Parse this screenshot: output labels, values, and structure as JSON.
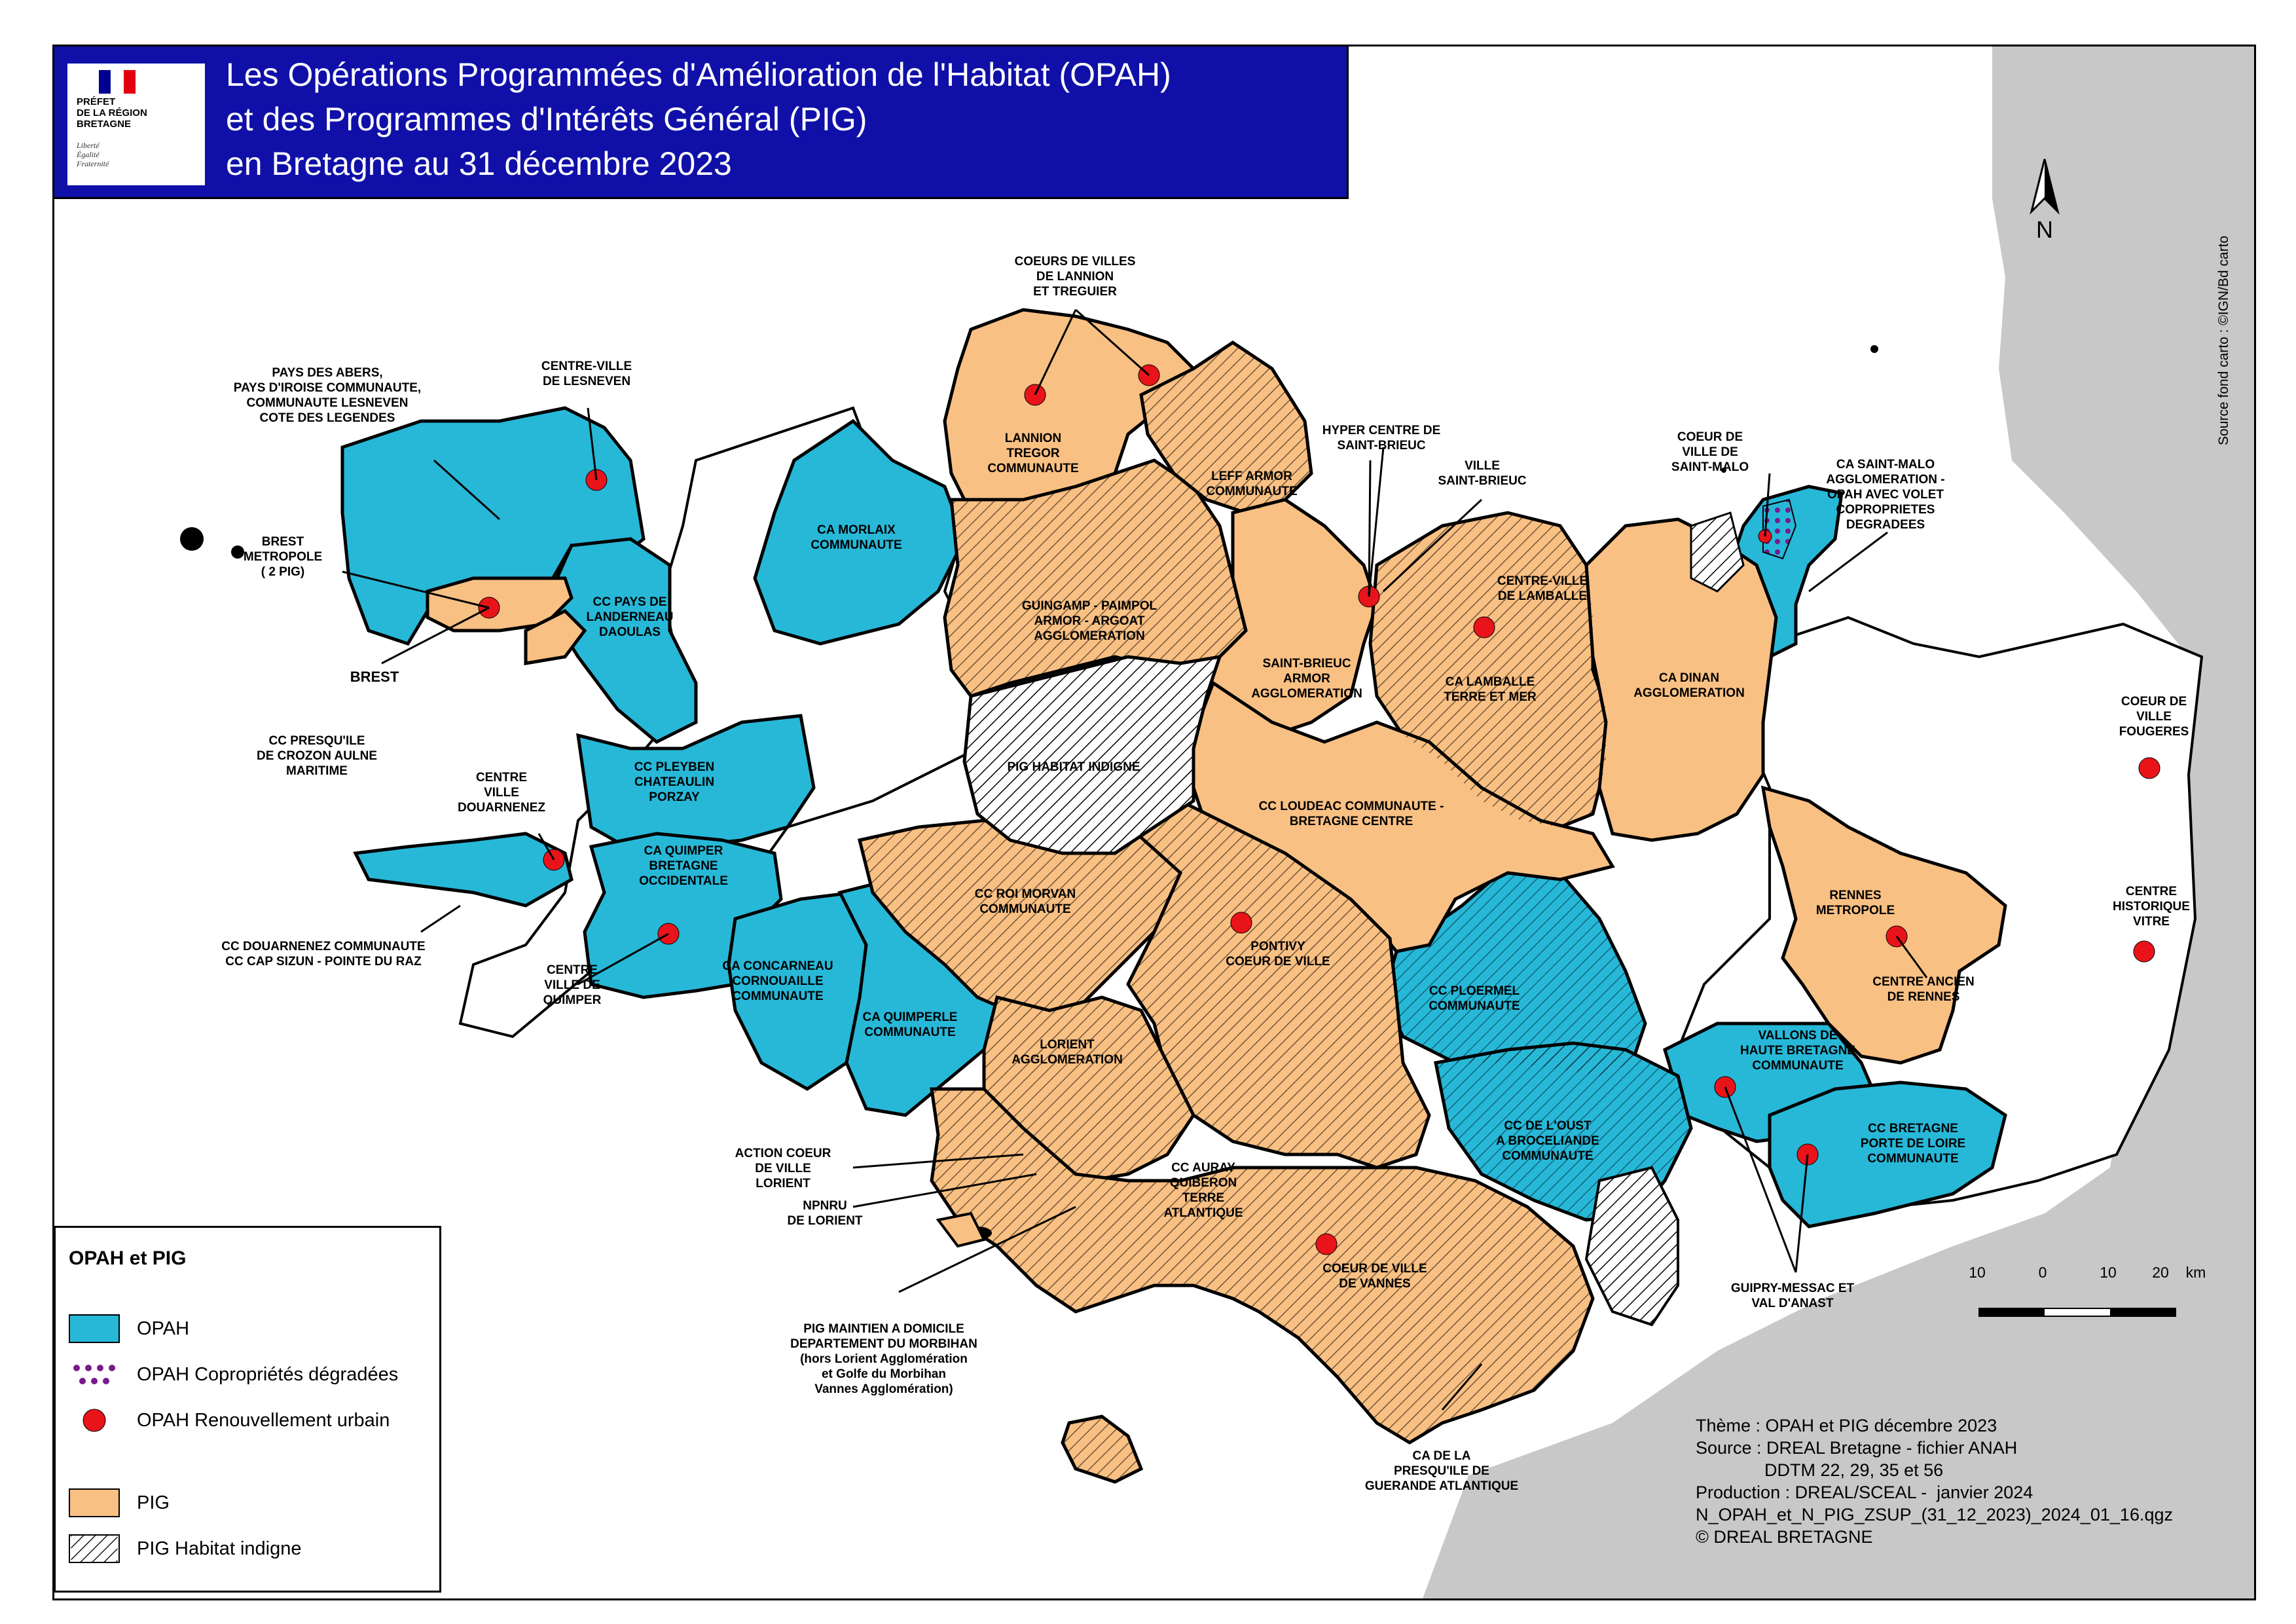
{
  "header": {
    "title_lines": [
      "Les Opérations Programmées d'Amélioration de l'Habitat (OPAH)",
      "et des Programmes d'Intérêts Général (PIG)",
      "en Bretagne au 31 décembre 2023"
    ],
    "logo_text": "PRÉFET\nDE LA RÉGION\nBRETAGNE",
    "logo_motto": "Liberté\nÉgalité\nFraternité"
  },
  "legend": {
    "title": "OPAH et PIG",
    "items": [
      {
        "label": "OPAH",
        "icon": "swatch-blue"
      },
      {
        "label": "OPAH Copropriétés dégradées",
        "icon": "swatch-purple-dots"
      },
      {
        "label": "OPAH Renouvellement urbain",
        "icon": "red-dot"
      },
      {
        "label": "PIG",
        "icon": "swatch-orange"
      },
      {
        "label": "PIG Habitat indigne",
        "icon": "swatch-hatch"
      }
    ]
  },
  "labels": [
    "COEURS DE VILLES\nDE LANNION\nET TREGUIER",
    "PAYS DES ABERS,\nPAYS D'IROISE COMMUNAUTE,\nCOMMUNAUTE LESNEVEN\nCOTE DES LEGENDES",
    "CENTRE-VILLE\nDE LESNEVEN",
    "LANNION\nTREGOR\nCOMMUNAUTE",
    "LEFF ARMOR\nCOMMUNAUTE",
    "HYPER CENTRE DE\nSAINT-BRIEUC",
    "VILLE\nSAINT-BRIEUC",
    "COEUR DE\nVILLE DE\nSAINT-MALO",
    "CA SAINT-MALO\nAGGLOMERATION -\nOPAH AVEC VOLET\nCOPROPRIETES\nDEGRADEES",
    "CA MORLAIX\nCOMMUNAUTE",
    "BREST\nMETROPOLE\n( 2 PIG)",
    "CC PAYS DE\nLANDERNEAU\nDAOULAS",
    "BREST",
    "GUINGAMP - PAIMPOL\nARMOR - ARGOAT\nAGGLOMERATION",
    "CENTRE-VILLE\nDE LAMBALLE",
    "SAINT-BRIEUC\nARMOR\nAGGLOMERATION",
    "CA LAMBALLE\nTERRE ET MER",
    "CA DINAN\nAGGLOMERATION",
    "COEUR DE\nVILLE\nFOUGERES",
    "CC PRESQU'ILE\nDE CROZON AULNE\nMARITIME",
    "PIG HABITAT INDIGNE",
    "CC PLEYBEN\nCHATEAULIN\nPORZAY",
    "CENTRE\nVILLE\nDOUARNENEZ",
    "CC LOUDEAC COMMUNAUTE -\nBRETAGNE CENTRE",
    "CA QUIMPER\nBRETAGNE\nOCCIDENTALE",
    "CC ROI MORVAN\nCOMMUNAUTE",
    "RENNES\nMETROPOLE",
    "CENTRE\nHISTORIQUE\nVITRE",
    "PONTIVY\nCOEUR DE VILLE",
    "CC DOUARNENEZ COMMUNAUTE\nCC CAP SIZUN - POINTE DU RAZ",
    "CENTRE\nVILLE DE\nQUIMPER",
    "CA CONCARNEAU\nCORNOUAILLE\nCOMMUNAUTE",
    "CC PLOERMEL\nCOMMUNAUTE",
    "CENTRE ANCIEN\nDE RENNES",
    "CA QUIMPERLE\nCOMMUNAUTE",
    "LORIENT\nAGGLOMERATION",
    "VALLONS DE\nHAUTE BRETAGNE\nCOMMUNAUTE",
    "CC DE L'OUST\nA BROCELIANDE\nCOMMUNAUTE",
    "CC BRETAGNE\nPORTE DE LOIRE\nCOMMUNAUTE",
    "ACTION COEUR\nDE VILLE\nLORIENT",
    "CC AURAY\nQUIBERON\nTERRE\nATLANTIQUE",
    "NPNRU\nDE LORIENT",
    "COEUR DE VILLE\nDE VANNES",
    "GUIPRY-MESSAC ET\nVAL D'ANAST",
    "PIG MAINTIEN A DOMICILE\nDEPARTEMENT DU MORBIHAN\n(hors Lorient Agglomération\net Golfe du Morbihan\nVannes Agglomération)",
    "CA DE LA\nPRESQU'ILE DE\nGUERANDE ATLANTIQUE"
  ],
  "scale": {
    "ticks": [
      "10",
      "0",
      "10",
      "20"
    ],
    "unit": "km"
  },
  "north_label": "N",
  "source_fond": "Source fond carto : ©IGN/Bd carto",
  "credits": "Thème : OPAH et PIG décembre 2023\nSource : DREAL Bretagne - fichier ANAH\n              DDTM 22, 29, 35 et 56\nProduction : DREAL/SCEAL -  janvier 2024\nN_OPAH_et_N_PIG_ZSUP_(31_12_2023)_2024_01_16.qgz\n© DREAL BRETAGNE",
  "colors": {
    "opah": "#27b8d8",
    "pig": "#f9c083",
    "sea": "#ffffff",
    "outside": "#c8c8c8",
    "urban_renewal": "#e8141a",
    "header_bg": "#1010a8",
    "copro_degradees": "#7a1a8c"
  }
}
